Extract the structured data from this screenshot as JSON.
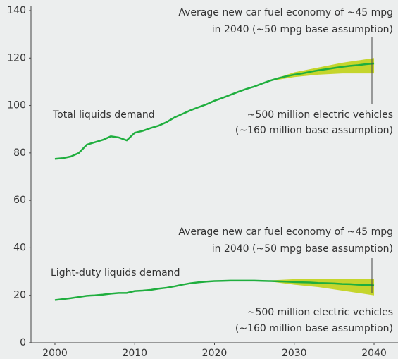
{
  "chart_data": {
    "type": "line",
    "x": [
      2000,
      2001,
      2002,
      2003,
      2004,
      2005,
      2006,
      2007,
      2008,
      2009,
      2010,
      2011,
      2012,
      2013,
      2014,
      2015,
      2016,
      2017,
      2018,
      2019,
      2020,
      2021,
      2022,
      2023,
      2024,
      2025,
      2026,
      2027,
      2028,
      2029,
      2030,
      2031,
      2032,
      2033,
      2034,
      2035,
      2036,
      2037,
      2038,
      2039,
      2040
    ],
    "series": [
      {
        "name": "Total liquids demand",
        "color": "#1fae3e",
        "values": [
          77.5,
          77.8,
          78.5,
          80,
          83.5,
          84.5,
          85.5,
          87,
          86.5,
          85.3,
          88.5,
          89.3,
          90.5,
          91.5,
          93,
          95,
          96.5,
          98,
          99.3,
          100.5,
          102,
          103.2,
          104.5,
          105.8,
          107,
          108,
          109.3,
          110.5,
          111.5,
          112.3,
          113,
          113.5,
          114.2,
          114.8,
          115.3,
          115.8,
          116.3,
          116.7,
          117,
          117.4,
          117.7
        ]
      },
      {
        "name": "Light-duty liquids demand",
        "color": "#1fae3e",
        "values": [
          18,
          18.4,
          18.8,
          19.3,
          19.8,
          20,
          20.3,
          20.7,
          21,
          21,
          21.8,
          22,
          22.3,
          22.8,
          23.2,
          23.8,
          24.5,
          25.1,
          25.5,
          25.8,
          26,
          26.1,
          26.2,
          26.2,
          26.2,
          26.2,
          26.1,
          26,
          25.9,
          25.8,
          25.6,
          25.5,
          25.4,
          25.2,
          25.1,
          25,
          24.8,
          24.7,
          24.5,
          24.4,
          24.2
        ]
      }
    ],
    "bands": [
      {
        "color": "#c5d52c",
        "x": [
          2027,
          2030,
          2033,
          2036,
          2040
        ],
        "lower": [
          110.3,
          112,
          113,
          113.5,
          113.5
        ],
        "upper": [
          110.7,
          114,
          116,
          118,
          120
        ]
      },
      {
        "color": "#c5d52c",
        "x": [
          2027,
          2030,
          2033,
          2036,
          2040
        ],
        "lower": [
          25.8,
          24.5,
          23.5,
          22,
          20
        ],
        "upper": [
          26.3,
          26.8,
          27,
          27,
          27
        ]
      }
    ],
    "annotations": [
      [
        "Average new car fuel economy of ~45 mpg",
        "in 2040 (~50 mpg base assumption)"
      ],
      [
        "~500 million electric vehicles",
        "(~160 million base assumption)"
      ],
      [
        "Average new car fuel economy of ~45 mpg",
        "in 2040 (~50 mpg base assumption)"
      ],
      [
        "~500 million electric vehicles",
        "(~160 million base assumption)"
      ]
    ],
    "xlim": [
      1997,
      2043
    ],
    "ylim": [
      0,
      140
    ],
    "xticks": [
      2000,
      2010,
      2020,
      2030,
      2040
    ],
    "yticks": [
      0,
      20,
      40,
      60,
      80,
      100,
      120,
      140
    ]
  }
}
